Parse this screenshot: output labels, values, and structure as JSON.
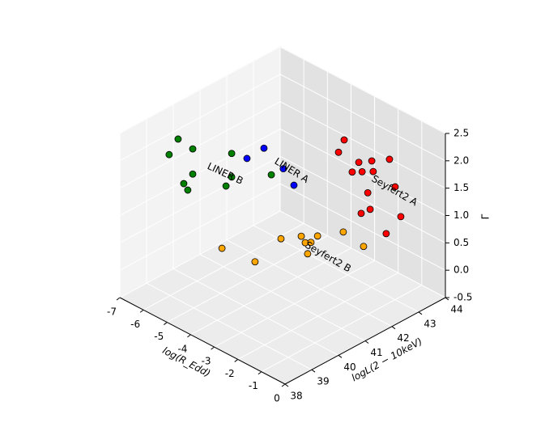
{
  "chart_data": {
    "type": "scatter3d",
    "xlabel": "log(R_Edd)",
    "ylabel": "logL(2 − 10keV)",
    "zlabel": "Γ",
    "xlim": [
      -7,
      0
    ],
    "ylim": [
      38,
      44
    ],
    "zlim": [
      -0.5,
      2.5
    ],
    "xticks": [
      -7,
      -6,
      -5,
      -4,
      -3,
      -2,
      -1,
      0
    ],
    "yticks": [
      38,
      39,
      40,
      41,
      42,
      43,
      44
    ],
    "zticks": [
      -0.5,
      {
        "value": 0,
        "label": "0.0"
      },
      0.5,
      {
        "value": 1,
        "label": "1.0"
      },
      1.5,
      {
        "value": 2,
        "label": "2.0"
      },
      2.5
    ],
    "grid": true,
    "series": [
      {
        "name": "Seyfert2 A",
        "color": "#ff0000",
        "x": [
          -3.27,
          -3.51,
          -2.65,
          -2.1,
          -1.35,
          -2.93,
          -2.51,
          -2.04,
          -1.11,
          -2.27,
          -2.17,
          -2.55,
          -0.87,
          -1.49
        ],
        "y": [
          43.1,
          43.1,
          43.1,
          43.1,
          43.1,
          43.1,
          43.1,
          43.1,
          43.1,
          43.1,
          43.1,
          43.1,
          43.1,
          43.1
        ],
        "z": [
          1.88,
          1.6,
          1.61,
          1.76,
          1.96,
          1.37,
          1.47,
          1.58,
          1.51,
          1.14,
          0.86,
          0.7,
          1.02,
          0.57
        ]
      },
      {
        "name": "Seyfert2 B",
        "color": "#ffa500",
        "x": [
          -6.07,
          -4.67,
          -3.57,
          -2.71,
          -2.54,
          -2.3,
          -2.02,
          -2.44,
          -0.93,
          -0.07
        ],
        "y": [
          41,
          41,
          41,
          41,
          41,
          41,
          41,
          41,
          41,
          41
        ],
        "z": [
          -0.18,
          -0.11,
          0.56,
          0.8,
          0.72,
          0.78,
          0.96,
          0.54,
          1.28,
          1.21
        ]
      },
      {
        "name": "LINER A",
        "color": "#0000ff",
        "x": [
          -5.69,
          -4.97,
          -4.15,
          -3.7
        ],
        "y": [
          41.6,
          41.6,
          41.6,
          41.6
        ],
        "z": [
          1.39,
          1.74,
          1.55,
          1.35
        ]
      },
      {
        "name": "LINER B",
        "color": "#008000",
        "x": [
          -6.57,
          -6.95,
          -5.95,
          -4.3,
          -5.95,
          -6.33,
          -6.16,
          -4.3,
          -4.54,
          -2.62
        ],
        "y": [
          39.8,
          39.8,
          39.8,
          39.8,
          39.8,
          39.8,
          39.8,
          39.8,
          39.8,
          39.8
        ],
        "z": [
          2.02,
          1.65,
          1.98,
          2.27,
          1.52,
          1.26,
          1.18,
          1.84,
          1.62,
          2.26
        ]
      }
    ]
  }
}
